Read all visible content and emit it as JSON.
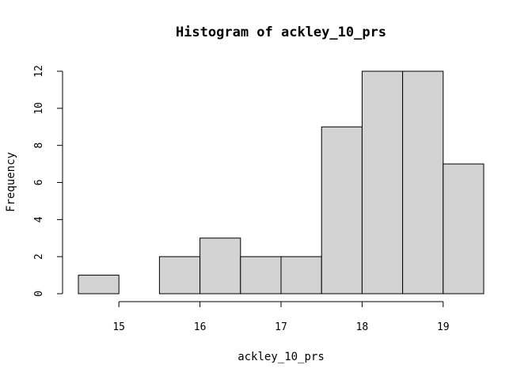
{
  "chart_data": {
    "type": "bar",
    "title": "Histogram of ackley_10_prs",
    "xlabel": "ackley_10_prs",
    "ylabel": "Frequency",
    "bins": [
      {
        "start": 14.5,
        "end": 15.0,
        "count": 1
      },
      {
        "start": 15.0,
        "end": 15.5,
        "count": 0
      },
      {
        "start": 15.5,
        "end": 16.0,
        "count": 2
      },
      {
        "start": 16.0,
        "end": 16.5,
        "count": 3
      },
      {
        "start": 16.5,
        "end": 17.0,
        "count": 2
      },
      {
        "start": 17.0,
        "end": 17.5,
        "count": 2
      },
      {
        "start": 17.5,
        "end": 18.0,
        "count": 9
      },
      {
        "start": 18.0,
        "end": 18.5,
        "count": 12
      },
      {
        "start": 18.5,
        "end": 19.0,
        "count": 12
      },
      {
        "start": 19.0,
        "end": 19.5,
        "count": 7
      }
    ],
    "x_ticks": [
      15,
      16,
      17,
      18,
      19
    ],
    "y_ticks": [
      0,
      2,
      4,
      6,
      8,
      10,
      12
    ],
    "xlim": [
      14.5,
      19.5
    ],
    "ylim": [
      0,
      12
    ],
    "grid": false,
    "bar_color": "#d3d3d3",
    "edge_color": "#000000"
  }
}
